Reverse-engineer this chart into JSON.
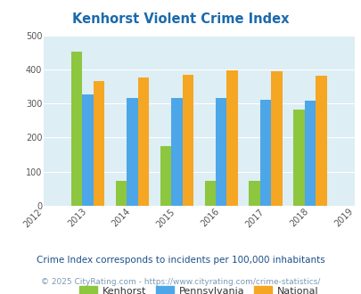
{
  "title": "Kenhorst Violent Crime Index",
  "years": [
    2013,
    2014,
    2015,
    2016,
    2017,
    2018
  ],
  "kenhorst": [
    453,
    73,
    176,
    73,
    73,
    281
  ],
  "pennsylvania": [
    327,
    315,
    315,
    315,
    312,
    307
  ],
  "national": [
    367,
    377,
    384,
    398,
    394,
    381
  ],
  "bar_colors": {
    "kenhorst": "#8dc63f",
    "pennsylvania": "#4da6e8",
    "national": "#f5a623"
  },
  "xlim": [
    2012,
    2019
  ],
  "ylim": [
    0,
    500
  ],
  "yticks": [
    0,
    100,
    200,
    300,
    400,
    500
  ],
  "xticks": [
    2012,
    2013,
    2014,
    2015,
    2016,
    2017,
    2018,
    2019
  ],
  "bg_color": "#ddeef4",
  "legend_labels": [
    "Kenhorst",
    "Pennsylvania",
    "National"
  ],
  "footnote1": "Crime Index corresponds to incidents per 100,000 inhabitants",
  "footnote2": "© 2025 CityRating.com - https://www.cityrating.com/crime-statistics/",
  "title_color": "#1b6aac",
  "footnote1_color": "#1b4f8a",
  "footnote2_color": "#7a9ab5",
  "bar_width": 0.25
}
